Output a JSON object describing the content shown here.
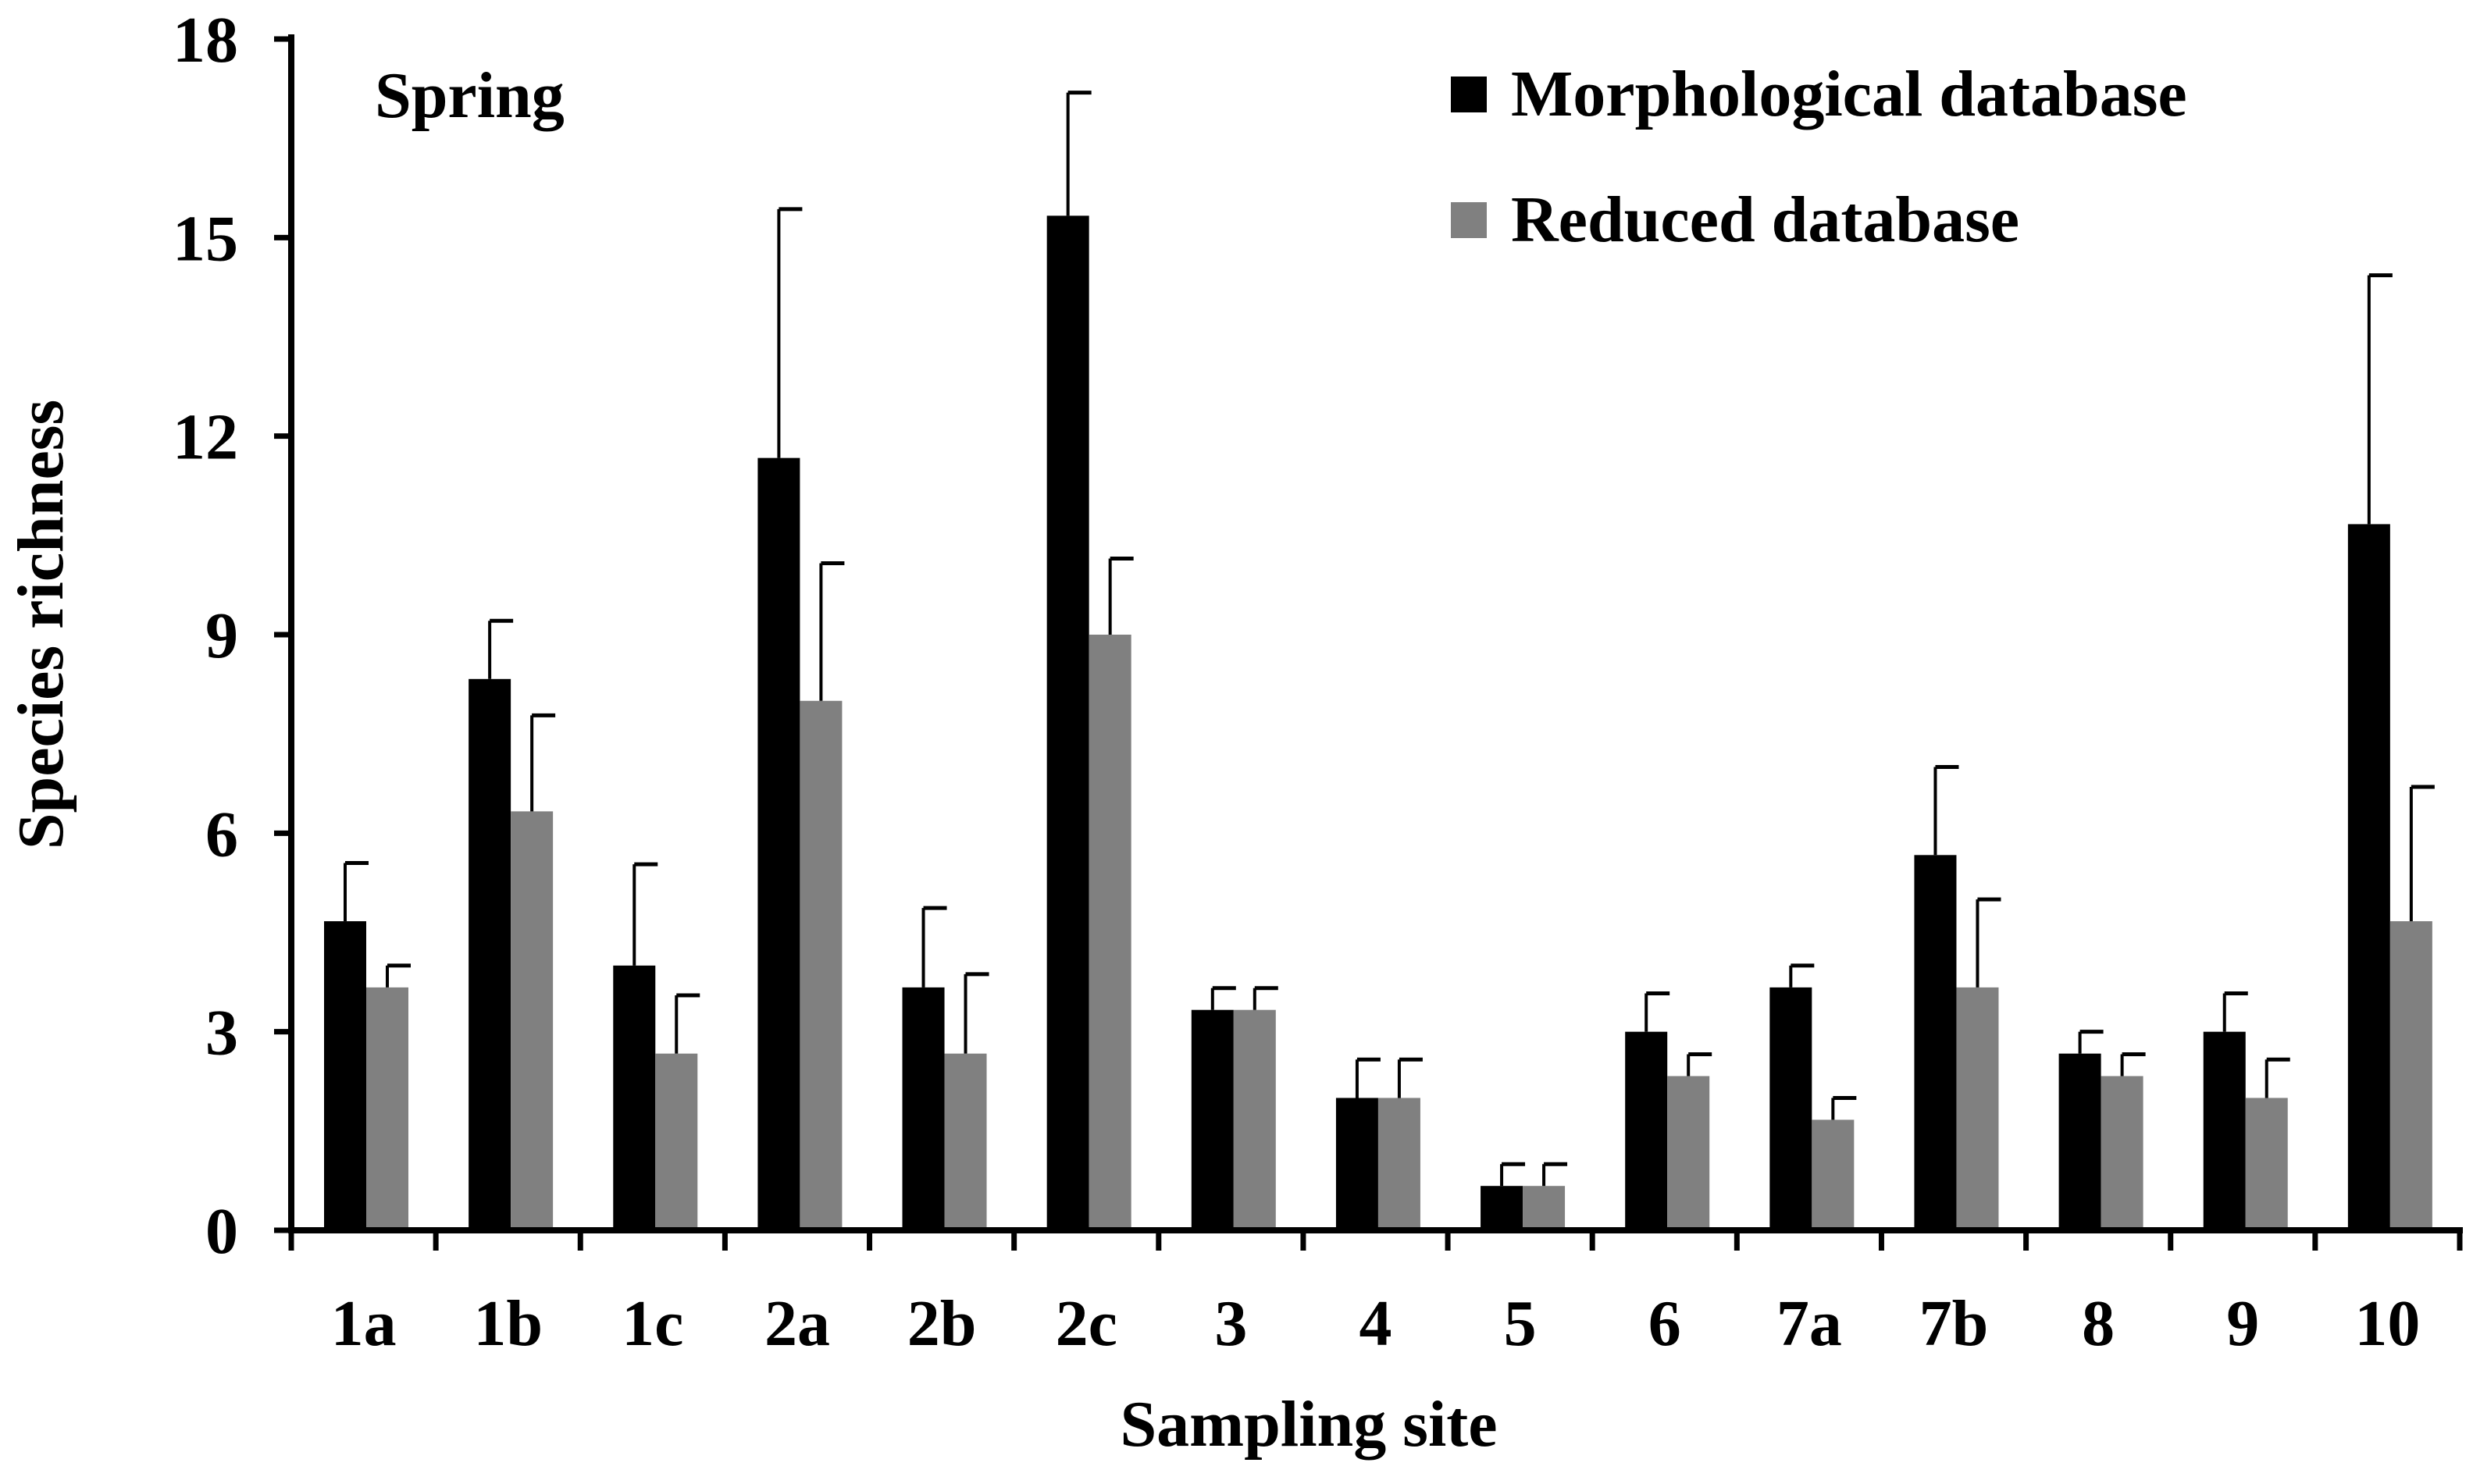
{
  "chart_data": {
    "type": "bar",
    "title": "",
    "annotation": "Spring",
    "xlabel": "Sampling site",
    "ylabel": "Species richness",
    "ylim": [
      0,
      18
    ],
    "yticks": [
      0,
      3,
      6,
      9,
      12,
      15,
      18
    ],
    "ytick_labels": [
      "0",
      "3",
      "6",
      "9",
      "12",
      "15",
      "18"
    ],
    "categories": [
      "1a",
      "1b",
      "1c",
      "2a",
      "2b",
      "2c",
      "3",
      "4",
      "5",
      "6",
      "7a",
      "7b",
      "8",
      "9",
      "10"
    ],
    "series": [
      {
        "name": "Morphological database",
        "color": "#000000",
        "values": [
          4.67,
          8.33,
          4.0,
          11.67,
          3.67,
          15.33,
          3.33,
          2.0,
          0.67,
          3.0,
          3.67,
          5.67,
          2.67,
          3.0,
          10.67
        ],
        "error": [
          0.88,
          0.88,
          1.53,
          3.76,
          1.2,
          1.86,
          0.33,
          0.58,
          0.33,
          0.58,
          0.33,
          1.33,
          0.33,
          0.58,
          3.76
        ]
      },
      {
        "name": "Reduced database",
        "color": "#808080",
        "values": [
          3.67,
          6.33,
          2.67,
          8.0,
          2.67,
          9.0,
          3.33,
          2.0,
          0.67,
          2.33,
          1.67,
          3.67,
          2.33,
          2.0,
          4.67
        ],
        "error": [
          0.33,
          1.45,
          0.88,
          2.08,
          1.2,
          1.15,
          0.33,
          0.58,
          0.33,
          0.33,
          0.33,
          1.33,
          0.33,
          0.58,
          2.03
        ]
      }
    ],
    "legend_position": "top-right",
    "grid": false
  }
}
